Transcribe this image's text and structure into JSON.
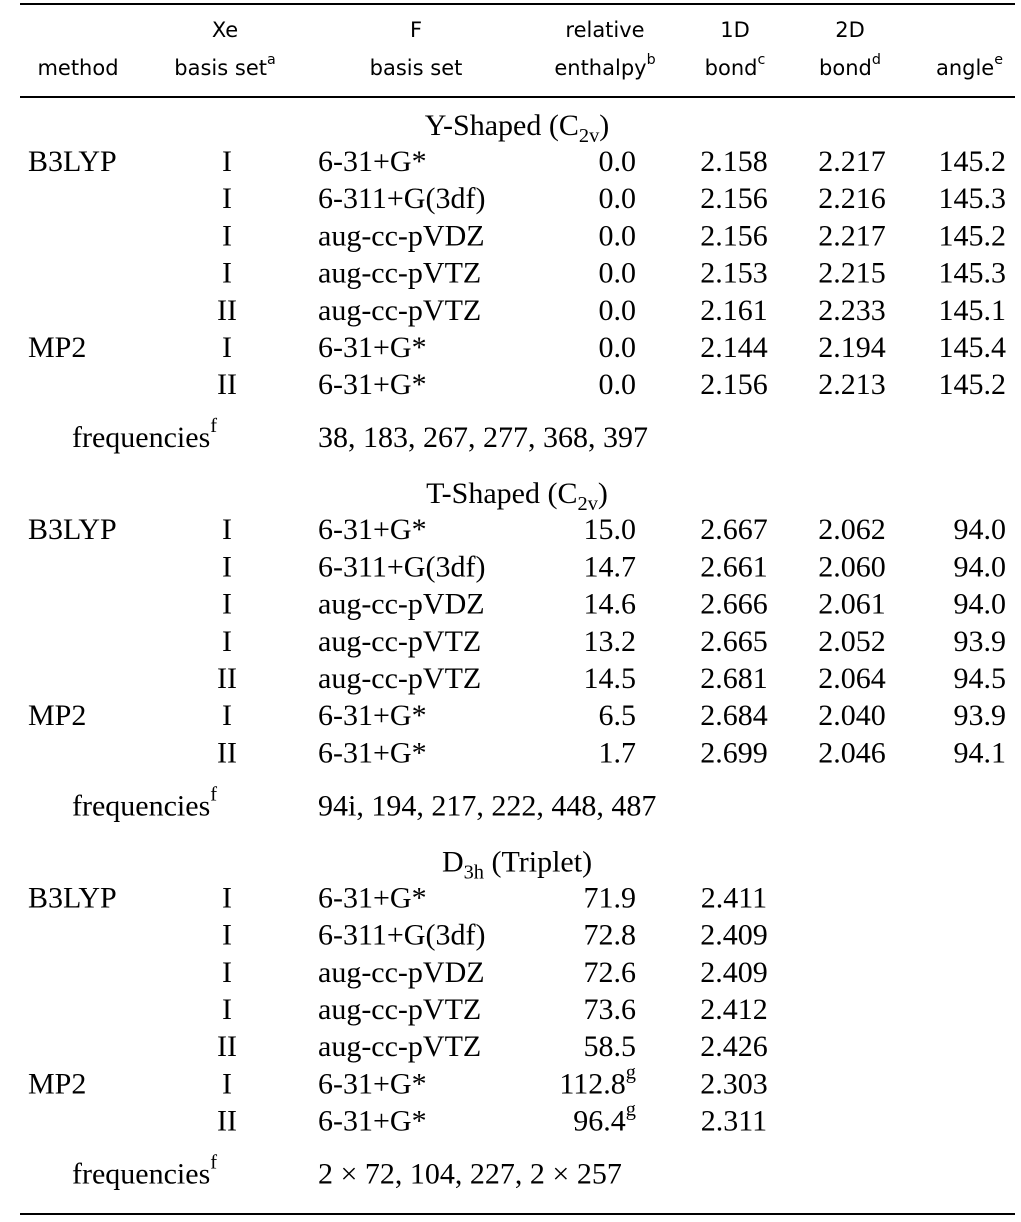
{
  "header": {
    "columns": [
      {
        "lines": [
          "method"
        ]
      },
      {
        "lines": [
          "Xe",
          "basis set"
        ],
        "note": "a"
      },
      {
        "lines": [
          "F",
          "basis set"
        ]
      },
      {
        "lines": [
          "relative",
          "enthalpy"
        ],
        "note": "b"
      },
      {
        "lines": [
          "1D",
          "bond"
        ],
        "note": "c"
      },
      {
        "lines": [
          "2D",
          "bond"
        ],
        "note": "d"
      },
      {
        "lines": [
          "angle"
        ],
        "note": "e"
      }
    ]
  },
  "sections": [
    {
      "title": {
        "text": "Y-Shaped (C",
        "sub": "2v",
        "end": ")"
      },
      "rows": [
        {
          "method": "B3LYP",
          "xe": "I",
          "f": "6-31+G*",
          "enthalpy": "0.0",
          "bond1": "2.158",
          "bond2": "2.217",
          "angle": "145.2"
        },
        {
          "xe": "I",
          "f": "6-311+G(3df)",
          "enthalpy": "0.0",
          "bond1": "2.156",
          "bond2": "2.216",
          "angle": "145.3"
        },
        {
          "xe": "I",
          "f": "aug-cc-pVDZ",
          "enthalpy": "0.0",
          "bond1": "2.156",
          "bond2": "2.217",
          "angle": "145.2"
        },
        {
          "xe": "I",
          "f": "aug-cc-pVTZ",
          "enthalpy": "0.0",
          "bond1": "2.153",
          "bond2": "2.215",
          "angle": "145.3"
        },
        {
          "xe": "II",
          "f": "aug-cc-pVTZ",
          "enthalpy": "0.0",
          "bond1": "2.161",
          "bond2": "2.233",
          "angle": "145.1"
        },
        {
          "method": "MP2",
          "xe": "I",
          "f": "6-31+G*",
          "enthalpy": "0.0",
          "bond1": "2.144",
          "bond2": "2.194",
          "angle": "145.4"
        },
        {
          "xe": "II",
          "f": "6-31+G*",
          "enthalpy": "0.0",
          "bond1": "2.156",
          "bond2": "2.213",
          "angle": "145.2"
        }
      ],
      "frequencies": {
        "label": "frequencies",
        "note": "f",
        "values": "38, 183, 267, 277, 368, 397"
      }
    },
    {
      "title": {
        "text": "T-Shaped (C",
        "sub": "2v",
        "end": ")"
      },
      "rows": [
        {
          "method": "B3LYP",
          "xe": "I",
          "f": "6-31+G*",
          "enthalpy": "15.0",
          "bond1": "2.667",
          "bond2": "2.062",
          "angle": "94.0"
        },
        {
          "xe": "I",
          "f": "6-311+G(3df)",
          "enthalpy": "14.7",
          "bond1": "2.661",
          "bond2": "2.060",
          "angle": "94.0"
        },
        {
          "xe": "I",
          "f": "aug-cc-pVDZ",
          "enthalpy": "14.6",
          "bond1": "2.666",
          "bond2": "2.061",
          "angle": "94.0"
        },
        {
          "xe": "I",
          "f": "aug-cc-pVTZ",
          "enthalpy": "13.2",
          "bond1": "2.665",
          "bond2": "2.052",
          "angle": "93.9"
        },
        {
          "xe": "II",
          "f": "aug-cc-pVTZ",
          "enthalpy": "14.5",
          "bond1": "2.681",
          "bond2": "2.064",
          "angle": "94.5"
        },
        {
          "method": "MP2",
          "xe": "I",
          "f": "6-31+G*",
          "enthalpy": "6.5",
          "bond1": "2.684",
          "bond2": "2.040",
          "angle": "93.9"
        },
        {
          "xe": "II",
          "f": "6-31+G*",
          "enthalpy": "1.7",
          "bond1": "2.699",
          "bond2": "2.046",
          "angle": "94.1"
        }
      ],
      "frequencies": {
        "label": "frequencies",
        "note": "f",
        "values": "94i, 194, 217, 222, 448, 487"
      }
    },
    {
      "title": {
        "text": "D",
        "sub": "3h",
        "end": " (Triplet)"
      },
      "rows": [
        {
          "method": "B3LYP",
          "xe": "I",
          "f": "6-31+G*",
          "enthalpy": "71.9",
          "bond1": "2.411"
        },
        {
          "xe": "I",
          "f": "6-311+G(3df)",
          "enthalpy": "72.8",
          "bond1": "2.409"
        },
        {
          "xe": "I",
          "f": "aug-cc-pVDZ",
          "enthalpy": "72.6",
          "bond1": "2.409"
        },
        {
          "xe": "I",
          "f": "aug-cc-pVTZ",
          "enthalpy": "73.6",
          "bond1": "2.412"
        },
        {
          "xe": "II",
          "f": "aug-cc-pVTZ",
          "enthalpy": "58.5",
          "bond1": "2.426"
        },
        {
          "method": "MP2",
          "xe": "I",
          "f": "6-31+G*",
          "enthalpy": "112.8",
          "enthalpy_note": "g",
          "bond1": "2.303"
        },
        {
          "xe": "II",
          "f": "6-31+G*",
          "enthalpy": "96.4",
          "enthalpy_note": "g",
          "bond1": "2.311"
        }
      ],
      "frequencies": {
        "label": "frequencies",
        "note": "f",
        "values": "2 × 72, 104, 227, 2 × 257"
      }
    }
  ]
}
